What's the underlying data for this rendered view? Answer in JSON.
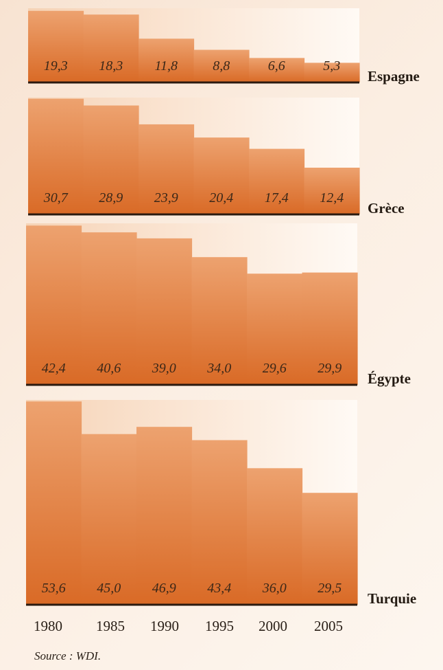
{
  "chart_data": {
    "type": "bar",
    "categories": [
      "1980",
      "1985",
      "1990",
      "1995",
      "2000",
      "2005"
    ],
    "panels": [
      {
        "name": "Espagne",
        "values": [
          19.3,
          18.3,
          11.8,
          8.8,
          6.6,
          5.3
        ],
        "labels": [
          "19,3",
          "18,3",
          "11,8",
          "8,8",
          "6,6",
          "5,3"
        ]
      },
      {
        "name": "Grèce",
        "values": [
          30.7,
          28.9,
          23.9,
          20.4,
          17.4,
          12.4
        ],
        "labels": [
          "30,7",
          "28,9",
          "23,9",
          "20,4",
          "17,4",
          "12,4"
        ]
      },
      {
        "name": "Égypte",
        "values": [
          42.4,
          40.6,
          39.0,
          34.0,
          29.6,
          29.9
        ],
        "labels": [
          "42,4",
          "40,6",
          "39,0",
          "34,0",
          "29,6",
          "29,9"
        ]
      },
      {
        "name": "Turquie",
        "values": [
          53.6,
          45.0,
          46.9,
          43.4,
          36.0,
          29.5
        ],
        "labels": [
          "53,6",
          "45,0",
          "46,9",
          "43,4",
          "36,0",
          "29,5"
        ]
      }
    ],
    "colors": {
      "bar_top": "#eda26f",
      "bar_bottom": "#d96a26",
      "baseline": "#2b1a0f"
    },
    "source": "Source : WDI."
  }
}
